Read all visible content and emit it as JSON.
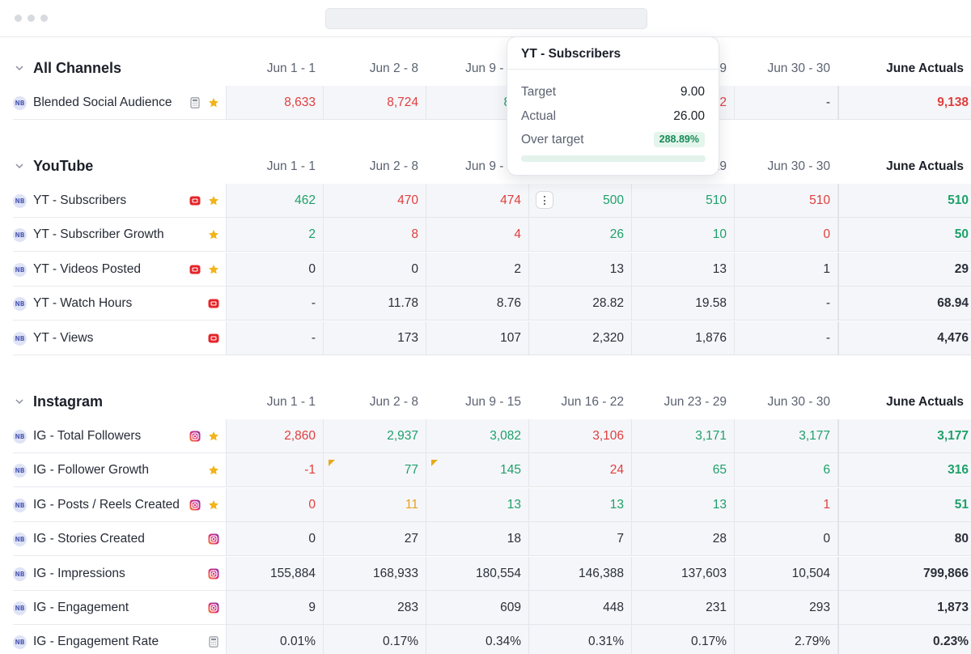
{
  "window": {
    "dots": 3
  },
  "sections": [
    {
      "title": "All Channels",
      "columns": [
        "Jun 1 - 1",
        "Jun 2 - 8",
        "Jun 9 - 15",
        "Jun 16 - 22",
        "Jun 23 - 29",
        "Jun 30 - 30",
        "June Actuals"
      ],
      "rows": [
        {
          "label": "Blended Social Audience",
          "icons": [
            "calculator-icon",
            "star-icon"
          ],
          "cells": [
            {
              "v": "8,633",
              "c": "red"
            },
            {
              "v": "8,724",
              "c": "red"
            },
            {
              "v": "8,9",
              "c": "green"
            },
            {
              "v": "",
              "c": "dark"
            },
            {
              "v": "2",
              "c": "red"
            },
            {
              "v": "-",
              "c": "dark"
            },
            {
              "v": "9,138",
              "c": "red"
            }
          ]
        }
      ]
    },
    {
      "title": "YouTube",
      "columns": [
        "Jun 1 - 1",
        "Jun 2 - 8",
        "Jun 9 - 15",
        "Jun 16 - 22",
        "Jun 23 - 29",
        "Jun 30 - 30",
        "June Actuals"
      ],
      "rows": [
        {
          "label": "YT - Subscribers",
          "icons": [
            "youtube-icon",
            "star-icon"
          ],
          "cells": [
            {
              "v": "462",
              "c": "green"
            },
            {
              "v": "470",
              "c": "red"
            },
            {
              "v": "474",
              "c": "red"
            },
            {
              "v": "500",
              "c": "green",
              "kebab": true
            },
            {
              "v": "510",
              "c": "green"
            },
            {
              "v": "510",
              "c": "red"
            },
            {
              "v": "510",
              "c": "green"
            }
          ]
        },
        {
          "label": "YT - Subscriber Growth",
          "icons": [
            "star-icon"
          ],
          "cells": [
            {
              "v": "2",
              "c": "green"
            },
            {
              "v": "8",
              "c": "red"
            },
            {
              "v": "4",
              "c": "red"
            },
            {
              "v": "26",
              "c": "green"
            },
            {
              "v": "10",
              "c": "green"
            },
            {
              "v": "0",
              "c": "red"
            },
            {
              "v": "50",
              "c": "green"
            }
          ]
        },
        {
          "label": "YT - Videos Posted",
          "icons": [
            "youtube-icon",
            "star-icon"
          ],
          "cells": [
            {
              "v": "0",
              "c": "dark"
            },
            {
              "v": "0",
              "c": "dark"
            },
            {
              "v": "2",
              "c": "dark"
            },
            {
              "v": "13",
              "c": "dark"
            },
            {
              "v": "13",
              "c": "dark"
            },
            {
              "v": "1",
              "c": "dark"
            },
            {
              "v": "29",
              "c": "dark"
            }
          ]
        },
        {
          "label": "YT - Watch Hours",
          "icons": [
            "youtube-icon"
          ],
          "cells": [
            {
              "v": "-",
              "c": "dark"
            },
            {
              "v": "11.78",
              "c": "dark"
            },
            {
              "v": "8.76",
              "c": "dark"
            },
            {
              "v": "28.82",
              "c": "dark"
            },
            {
              "v": "19.58",
              "c": "dark"
            },
            {
              "v": "-",
              "c": "dark"
            },
            {
              "v": "68.94",
              "c": "dark"
            }
          ]
        },
        {
          "label": "YT - Views",
          "icons": [
            "youtube-icon"
          ],
          "cells": [
            {
              "v": "-",
              "c": "dark"
            },
            {
              "v": "173",
              "c": "dark"
            },
            {
              "v": "107",
              "c": "dark"
            },
            {
              "v": "2,320",
              "c": "dark"
            },
            {
              "v": "1,876",
              "c": "dark"
            },
            {
              "v": "-",
              "c": "dark"
            },
            {
              "v": "4,476",
              "c": "dark"
            }
          ]
        }
      ]
    },
    {
      "title": "Instagram",
      "columns": [
        "Jun 1 - 1",
        "Jun 2 - 8",
        "Jun 9 - 15",
        "Jun 16 - 22",
        "Jun 23 - 29",
        "Jun 30 - 30",
        "June Actuals"
      ],
      "rows": [
        {
          "label": "IG - Total Followers",
          "icons": [
            "instagram-icon",
            "star-icon"
          ],
          "cells": [
            {
              "v": "2,860",
              "c": "red"
            },
            {
              "v": "2,937",
              "c": "green"
            },
            {
              "v": "3,082",
              "c": "green"
            },
            {
              "v": "3,106",
              "c": "red"
            },
            {
              "v": "3,171",
              "c": "green"
            },
            {
              "v": "3,177",
              "c": "green"
            },
            {
              "v": "3,177",
              "c": "green"
            }
          ]
        },
        {
          "label": "IG - Follower Growth",
          "icons": [
            "star-icon"
          ],
          "cells": [
            {
              "v": "-1",
              "c": "red"
            },
            {
              "v": "77",
              "c": "green",
              "flag": true
            },
            {
              "v": "145",
              "c": "green",
              "flag": true
            },
            {
              "v": "24",
              "c": "red"
            },
            {
              "v": "65",
              "c": "green"
            },
            {
              "v": "6",
              "c": "green"
            },
            {
              "v": "316",
              "c": "green"
            }
          ]
        },
        {
          "label": "IG - Posts / Reels Created",
          "icons": [
            "instagram-icon",
            "star-icon"
          ],
          "cells": [
            {
              "v": "0",
              "c": "red"
            },
            {
              "v": "11",
              "c": "orange"
            },
            {
              "v": "13",
              "c": "green"
            },
            {
              "v": "13",
              "c": "green"
            },
            {
              "v": "13",
              "c": "green"
            },
            {
              "v": "1",
              "c": "red"
            },
            {
              "v": "51",
              "c": "green"
            }
          ]
        },
        {
          "label": "IG - Stories Created",
          "icons": [
            "instagram-icon"
          ],
          "cells": [
            {
              "v": "0",
              "c": "dark"
            },
            {
              "v": "27",
              "c": "dark"
            },
            {
              "v": "18",
              "c": "dark"
            },
            {
              "v": "7",
              "c": "dark"
            },
            {
              "v": "28",
              "c": "dark"
            },
            {
              "v": "0",
              "c": "dark"
            },
            {
              "v": "80",
              "c": "dark"
            }
          ]
        },
        {
          "label": "IG - Impressions",
          "icons": [
            "instagram-icon"
          ],
          "cells": [
            {
              "v": "155,884",
              "c": "dark"
            },
            {
              "v": "168,933",
              "c": "dark"
            },
            {
              "v": "180,554",
              "c": "dark"
            },
            {
              "v": "146,388",
              "c": "dark"
            },
            {
              "v": "137,603",
              "c": "dark"
            },
            {
              "v": "10,504",
              "c": "dark"
            },
            {
              "v": "799,866",
              "c": "dark"
            }
          ]
        },
        {
          "label": "IG - Engagement",
          "icons": [
            "instagram-icon"
          ],
          "cells": [
            {
              "v": "9",
              "c": "dark"
            },
            {
              "v": "283",
              "c": "dark"
            },
            {
              "v": "609",
              "c": "dark"
            },
            {
              "v": "448",
              "c": "dark"
            },
            {
              "v": "231",
              "c": "dark"
            },
            {
              "v": "293",
              "c": "dark"
            },
            {
              "v": "1,873",
              "c": "dark"
            }
          ]
        },
        {
          "label": "IG - Engagement Rate",
          "icons": [
            "calculator-icon"
          ],
          "cells": [
            {
              "v": "0.01%",
              "c": "dark"
            },
            {
              "v": "0.17%",
              "c": "dark"
            },
            {
              "v": "0.34%",
              "c": "dark"
            },
            {
              "v": "0.31%",
              "c": "dark"
            },
            {
              "v": "0.17%",
              "c": "dark"
            },
            {
              "v": "2.79%",
              "c": "dark"
            },
            {
              "v": "0.23%",
              "c": "dark"
            }
          ]
        }
      ]
    }
  ],
  "badge_text": "NB",
  "tooltip": {
    "title": "YT - Subscribers",
    "target_label": "Target",
    "target_value": "9.00",
    "actual_label": "Actual",
    "actual_value": "26.00",
    "over_label": "Over target",
    "over_value": "288.89%",
    "progress": 1.0
  },
  "colors": {
    "red": "#e03e3e",
    "green": "#1ea06a",
    "orange": "#eaa11c",
    "dark": "#2a2f39",
    "star": "#f2b418",
    "youtube": "#e5252a",
    "instagram": "#c13584"
  }
}
